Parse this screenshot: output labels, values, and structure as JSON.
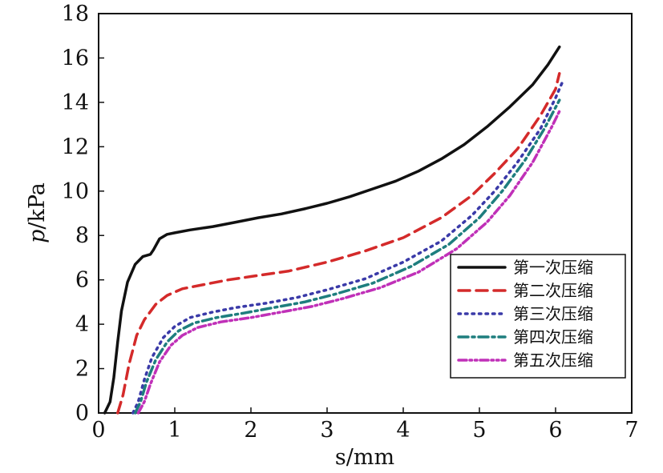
{
  "chart_data": {
    "type": "line",
    "xlabel": "s/mm",
    "ylabel_italic": "p",
    "ylabel_rest": "/kPa",
    "xlim": [
      0,
      7
    ],
    "ylim": [
      0,
      18
    ],
    "xticks": [
      0,
      1,
      2,
      3,
      4,
      5,
      6,
      7
    ],
    "yticks": [
      0,
      2,
      4,
      6,
      8,
      10,
      12,
      14,
      16,
      18
    ],
    "grid": false,
    "legend_position": "bottom-right",
    "series": [
      {
        "name": "第一次压缩",
        "color": "#111111",
        "dash": "solid",
        "points": [
          [
            0.08,
            0
          ],
          [
            0.15,
            0.5
          ],
          [
            0.2,
            1.6
          ],
          [
            0.25,
            3.2
          ],
          [
            0.3,
            4.6
          ],
          [
            0.38,
            5.9
          ],
          [
            0.48,
            6.7
          ],
          [
            0.58,
            7.05
          ],
          [
            0.68,
            7.15
          ],
          [
            0.72,
            7.35
          ],
          [
            0.8,
            7.85
          ],
          [
            0.9,
            8.05
          ],
          [
            1.0,
            8.12
          ],
          [
            1.2,
            8.25
          ],
          [
            1.5,
            8.4
          ],
          [
            1.8,
            8.6
          ],
          [
            2.1,
            8.8
          ],
          [
            2.4,
            8.97
          ],
          [
            2.7,
            9.2
          ],
          [
            3.0,
            9.45
          ],
          [
            3.3,
            9.75
          ],
          [
            3.6,
            10.1
          ],
          [
            3.9,
            10.45
          ],
          [
            4.2,
            10.9
          ],
          [
            4.5,
            11.45
          ],
          [
            4.8,
            12.1
          ],
          [
            5.1,
            12.9
          ],
          [
            5.4,
            13.8
          ],
          [
            5.7,
            14.8
          ],
          [
            5.9,
            15.7
          ],
          [
            6.05,
            16.5
          ]
        ]
      },
      {
        "name": "第二次压缩",
        "color": "#d42a2a",
        "dash": "long-dash",
        "points": [
          [
            0.25,
            0
          ],
          [
            0.32,
            0.8
          ],
          [
            0.4,
            2.2
          ],
          [
            0.5,
            3.5
          ],
          [
            0.6,
            4.2
          ],
          [
            0.75,
            4.9
          ],
          [
            0.9,
            5.3
          ],
          [
            1.1,
            5.6
          ],
          [
            1.4,
            5.8
          ],
          [
            1.7,
            6.0
          ],
          [
            2.0,
            6.15
          ],
          [
            2.5,
            6.4
          ],
          [
            3.0,
            6.8
          ],
          [
            3.5,
            7.3
          ],
          [
            4.0,
            7.9
          ],
          [
            4.5,
            8.8
          ],
          [
            4.9,
            9.8
          ],
          [
            5.2,
            10.8
          ],
          [
            5.5,
            11.9
          ],
          [
            5.8,
            13.4
          ],
          [
            6.0,
            14.6
          ],
          [
            6.05,
            15.3
          ]
        ]
      },
      {
        "name": "第三次压缩",
        "color": "#3a3aa8",
        "dash": "dotted",
        "points": [
          [
            0.45,
            0
          ],
          [
            0.52,
            0.5
          ],
          [
            0.6,
            1.5
          ],
          [
            0.7,
            2.5
          ],
          [
            0.85,
            3.4
          ],
          [
            1.0,
            3.9
          ],
          [
            1.2,
            4.3
          ],
          [
            1.5,
            4.55
          ],
          [
            1.8,
            4.75
          ],
          [
            2.2,
            4.95
          ],
          [
            2.6,
            5.2
          ],
          [
            3.0,
            5.55
          ],
          [
            3.5,
            6.05
          ],
          [
            4.0,
            6.8
          ],
          [
            4.5,
            7.75
          ],
          [
            4.9,
            8.9
          ],
          [
            5.2,
            10.0
          ],
          [
            5.5,
            11.3
          ],
          [
            5.8,
            12.8
          ],
          [
            6.0,
            14.2
          ],
          [
            6.1,
            15.0
          ]
        ]
      },
      {
        "name": "第四次压缩",
        "color": "#1e7e7e",
        "dash": "dash-dot",
        "points": [
          [
            0.48,
            0
          ],
          [
            0.55,
            0.5
          ],
          [
            0.63,
            1.4
          ],
          [
            0.75,
            2.4
          ],
          [
            0.9,
            3.2
          ],
          [
            1.05,
            3.7
          ],
          [
            1.25,
            4.05
          ],
          [
            1.55,
            4.3
          ],
          [
            1.9,
            4.5
          ],
          [
            2.3,
            4.75
          ],
          [
            2.7,
            5.0
          ],
          [
            3.1,
            5.35
          ],
          [
            3.6,
            5.85
          ],
          [
            4.1,
            6.6
          ],
          [
            4.6,
            7.6
          ],
          [
            5.0,
            8.8
          ],
          [
            5.3,
            10.0
          ],
          [
            5.6,
            11.4
          ],
          [
            5.85,
            12.8
          ],
          [
            6.05,
            14.1
          ]
        ]
      },
      {
        "name": "第五次压缩",
        "color": "#c030b8",
        "dash": "dash-dot-dot",
        "points": [
          [
            0.52,
            0
          ],
          [
            0.6,
            0.5
          ],
          [
            0.68,
            1.3
          ],
          [
            0.8,
            2.3
          ],
          [
            0.95,
            3.05
          ],
          [
            1.1,
            3.5
          ],
          [
            1.3,
            3.85
          ],
          [
            1.6,
            4.1
          ],
          [
            2.0,
            4.3
          ],
          [
            2.4,
            4.55
          ],
          [
            2.8,
            4.8
          ],
          [
            3.2,
            5.15
          ],
          [
            3.7,
            5.65
          ],
          [
            4.2,
            6.35
          ],
          [
            4.7,
            7.4
          ],
          [
            5.1,
            8.6
          ],
          [
            5.4,
            9.8
          ],
          [
            5.7,
            11.3
          ],
          [
            5.95,
            12.9
          ],
          [
            6.05,
            13.6
          ]
        ]
      }
    ]
  }
}
